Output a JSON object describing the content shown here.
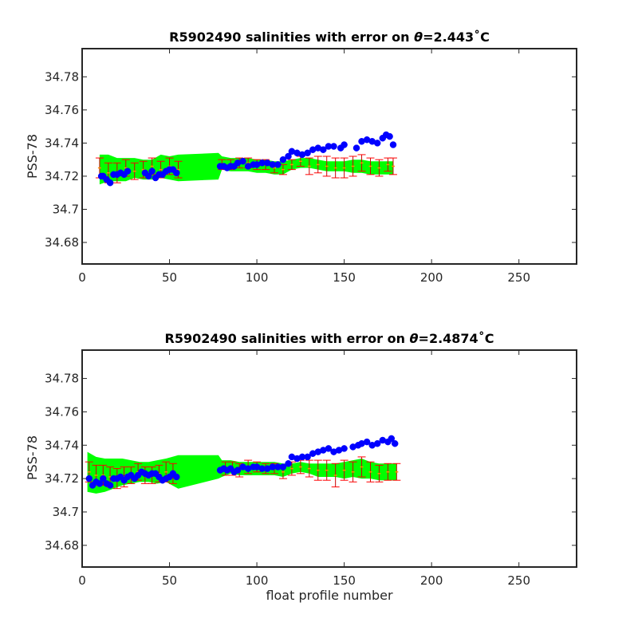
{
  "chart_data": [
    {
      "type": "scatter",
      "title": "R5902490 salinities with error on θ=2.443˚C",
      "title_parts": {
        "prefix": "R5902490 salinities with error on ",
        "symbol": "θ",
        "value": "=2.443",
        "unit": "˚C"
      },
      "xlabel": "",
      "ylabel": "PSS-78",
      "xlim": [
        0,
        283
      ],
      "ylim": [
        34.667,
        34.797
      ],
      "xticks": [
        0,
        50,
        100,
        150,
        200,
        250
      ],
      "xtick_labels": [
        "0",
        "50",
        "100",
        "150",
        "200",
        "250"
      ],
      "yticks": [
        34.68,
        34.7,
        34.72,
        34.74,
        34.76,
        34.78
      ],
      "ytick_labels": [
        "34.68",
        "34.7",
        "34.72",
        "34.74",
        "34.76",
        "34.78"
      ],
      "grid": false,
      "colors": {
        "band": "#00ff00",
        "errorbar": "#cc0000",
        "errorcap": "#ff0000",
        "points": "#0000ff",
        "calibrated": "#ff8c00"
      },
      "series": [
        {
          "role": "band",
          "x": [
            10,
            15,
            20,
            25,
            30,
            35,
            40,
            45,
            50,
            55,
            78,
            80,
            85,
            90,
            95,
            100,
            105,
            110,
            115,
            120,
            125,
            130,
            135,
            140,
            145,
            150,
            155,
            160,
            165,
            170,
            175,
            178
          ],
          "values": [
            34.724,
            34.725,
            34.724,
            34.724,
            34.725,
            34.724,
            34.724,
            34.726,
            34.725,
            34.725,
            34.726,
            34.728,
            34.727,
            34.727,
            34.727,
            34.726,
            34.726,
            34.725,
            34.725,
            34.727,
            34.728,
            34.728,
            34.727,
            34.726,
            34.726,
            34.726,
            34.726,
            34.726,
            34.725,
            34.725,
            34.725,
            34.725
          ],
          "errors": [
            0.009,
            0.008,
            0.007,
            0.007,
            0.006,
            0.006,
            0.006,
            0.007,
            0.007,
            0.008,
            0.008,
            0.004,
            0.004,
            0.004,
            0.004,
            0.004,
            0.004,
            0.004,
            0.004,
            0.003,
            0.003,
            0.003,
            0.003,
            0.003,
            0.003,
            0.003,
            0.004,
            0.004,
            0.004,
            0.004,
            0.004,
            0.004
          ]
        },
        {
          "role": "errorbars",
          "x": [
            10,
            15,
            20,
            25,
            30,
            35,
            40,
            45,
            50,
            55,
            80,
            85,
            90,
            95,
            100,
            105,
            110,
            115,
            120,
            125,
            130,
            135,
            140,
            145,
            150,
            155,
            160,
            165,
            170,
            175,
            178
          ],
          "values": [
            34.725,
            34.722,
            34.722,
            34.725,
            34.723,
            34.724,
            34.726,
            34.724,
            34.726,
            34.724,
            34.727,
            34.727,
            34.728,
            34.728,
            34.727,
            34.727,
            34.725,
            34.724,
            34.727,
            34.729,
            34.726,
            34.727,
            34.726,
            34.725,
            34.725,
            34.726,
            34.728,
            34.726,
            34.725,
            34.727,
            34.726
          ],
          "errors": [
            0.006,
            0.006,
            0.006,
            0.005,
            0.005,
            0.005,
            0.005,
            0.005,
            0.005,
            0.005,
            0.003,
            0.003,
            0.003,
            0.003,
            0.003,
            0.003,
            0.003,
            0.003,
            0.003,
            0.003,
            0.005,
            0.005,
            0.006,
            0.006,
            0.006,
            0.006,
            0.005,
            0.005,
            0.005,
            0.004,
            0.005
          ]
        },
        {
          "role": "points",
          "x": [
            11,
            12,
            14,
            16,
            18,
            20,
            22,
            24,
            26,
            36,
            38,
            40,
            42,
            44,
            46,
            48,
            50,
            52,
            54,
            79,
            81,
            83,
            85,
            87,
            89,
            92,
            95,
            98,
            100,
            103,
            106,
            109,
            112,
            115,
            118,
            120,
            123,
            126,
            129,
            132,
            135,
            138,
            141,
            144,
            148,
            150,
            157,
            160,
            163,
            166,
            169,
            172,
            174,
            176,
            178
          ],
          "values": [
            34.72,
            34.72,
            34.718,
            34.716,
            34.721,
            34.721,
            34.722,
            34.721,
            34.723,
            34.722,
            34.72,
            34.723,
            34.719,
            34.721,
            34.721,
            34.723,
            34.724,
            34.724,
            34.722,
            34.726,
            34.726,
            34.725,
            34.726,
            34.726,
            34.728,
            34.729,
            34.726,
            34.727,
            34.727,
            34.728,
            34.728,
            34.727,
            34.727,
            34.73,
            34.732,
            34.735,
            34.734,
            34.733,
            34.734,
            34.736,
            34.737,
            34.736,
            34.738,
            34.738,
            34.737,
            34.739,
            34.737,
            34.741,
            34.742,
            34.741,
            34.74,
            34.743,
            34.745,
            34.744,
            34.739
          ]
        }
      ]
    },
    {
      "type": "scatter",
      "title": "R5902490 salinities with error on θ=2.4874˚C",
      "title_parts": {
        "prefix": "R5902490 salinities with error on ",
        "symbol": "θ",
        "value": "=2.4874",
        "unit": "˚C"
      },
      "xlabel": "float profile number",
      "ylabel": "PSS-78",
      "xlim": [
        0,
        283
      ],
      "ylim": [
        34.667,
        34.797
      ],
      "xticks": [
        0,
        50,
        100,
        150,
        200,
        250
      ],
      "xtick_labels": [
        "0",
        "50",
        "100",
        "150",
        "200",
        "250"
      ],
      "yticks": [
        34.68,
        34.7,
        34.72,
        34.74,
        34.76,
        34.78
      ],
      "ytick_labels": [
        "34.68",
        "34.7",
        "34.72",
        "34.74",
        "34.76",
        "34.78"
      ],
      "grid": false,
      "colors": {
        "band": "#00ff00",
        "errorbar": "#cc0000",
        "errorcap": "#ff0000",
        "points": "#0000ff",
        "calibrated": "#ff8c00"
      },
      "series": [
        {
          "role": "band",
          "x": [
            3,
            8,
            13,
            18,
            23,
            28,
            33,
            38,
            43,
            48,
            55,
            78,
            80,
            85,
            90,
            95,
            100,
            105,
            110,
            115,
            120,
            125,
            130,
            135,
            140,
            145,
            150,
            155,
            160,
            165,
            170,
            175,
            180
          ],
          "values": [
            34.724,
            34.722,
            34.722,
            34.723,
            34.724,
            34.724,
            34.724,
            34.724,
            34.724,
            34.725,
            34.724,
            34.727,
            34.726,
            34.727,
            34.726,
            34.726,
            34.726,
            34.726,
            34.726,
            34.725,
            34.726,
            34.727,
            34.726,
            34.725,
            34.725,
            34.725,
            34.725,
            34.726,
            34.726,
            34.725,
            34.724,
            34.724,
            34.724
          ],
          "errors": [
            0.012,
            0.011,
            0.01,
            0.009,
            0.008,
            0.007,
            0.006,
            0.006,
            0.007,
            0.007,
            0.01,
            0.007,
            0.005,
            0.004,
            0.004,
            0.004,
            0.004,
            0.004,
            0.004,
            0.004,
            0.003,
            0.003,
            0.003,
            0.004,
            0.004,
            0.004,
            0.005,
            0.005,
            0.006,
            0.005,
            0.005,
            0.005,
            0.005
          ]
        },
        {
          "role": "errorbars",
          "x": [
            4,
            8,
            12,
            16,
            20,
            24,
            28,
            32,
            36,
            40,
            44,
            48,
            52,
            82,
            86,
            90,
            95,
            100,
            105,
            110,
            115,
            120,
            125,
            130,
            135,
            140,
            145,
            150,
            155,
            160,
            165,
            170,
            175,
            180
          ],
          "values": [
            34.724,
            34.722,
            34.722,
            34.721,
            34.72,
            34.721,
            34.722,
            34.724,
            34.722,
            34.722,
            34.723,
            34.724,
            34.723,
            34.726,
            34.726,
            34.725,
            34.727,
            34.727,
            34.726,
            34.726,
            34.724,
            34.726,
            34.727,
            34.726,
            34.725,
            34.725,
            34.722,
            34.725,
            34.724,
            34.727,
            34.724,
            34.723,
            34.724,
            34.724
          ],
          "errors": [
            0.006,
            0.006,
            0.006,
            0.006,
            0.006,
            0.006,
            0.005,
            0.005,
            0.005,
            0.005,
            0.005,
            0.006,
            0.006,
            0.004,
            0.004,
            0.004,
            0.004,
            0.003,
            0.003,
            0.003,
            0.004,
            0.004,
            0.004,
            0.005,
            0.006,
            0.006,
            0.007,
            0.006,
            0.006,
            0.006,
            0.006,
            0.005,
            0.005,
            0.005
          ]
        },
        {
          "role": "points",
          "x": [
            4,
            6,
            8,
            10,
            12,
            14,
            16,
            18,
            20,
            22,
            24,
            26,
            28,
            30,
            32,
            34,
            36,
            38,
            40,
            42,
            44,
            46,
            48,
            50,
            52,
            54,
            79,
            81,
            83,
            85,
            87,
            89,
            92,
            95,
            98,
            100,
            103,
            106,
            109,
            112,
            115,
            118,
            120,
            123,
            126,
            129,
            132,
            135,
            138,
            141,
            144,
            147,
            150,
            155,
            158,
            160,
            163,
            166,
            169,
            172,
            175,
            177,
            179
          ],
          "values": [
            34.72,
            34.716,
            34.718,
            34.717,
            34.72,
            34.717,
            34.716,
            34.72,
            34.72,
            34.721,
            34.719,
            34.721,
            34.722,
            34.72,
            34.722,
            34.724,
            34.723,
            34.722,
            34.723,
            34.723,
            34.721,
            34.719,
            34.72,
            34.721,
            34.723,
            34.721,
            34.725,
            34.726,
            34.725,
            34.726,
            34.724,
            34.725,
            34.727,
            34.726,
            34.727,
            34.727,
            34.726,
            34.726,
            34.727,
            34.727,
            34.727,
            34.729,
            34.733,
            34.732,
            34.733,
            34.733,
            34.735,
            34.736,
            34.737,
            34.738,
            34.736,
            34.737,
            34.738,
            34.739,
            34.74,
            34.741,
            34.742,
            34.74,
            34.741,
            34.743,
            34.742,
            34.744,
            34.741
          ]
        }
      ]
    }
  ]
}
